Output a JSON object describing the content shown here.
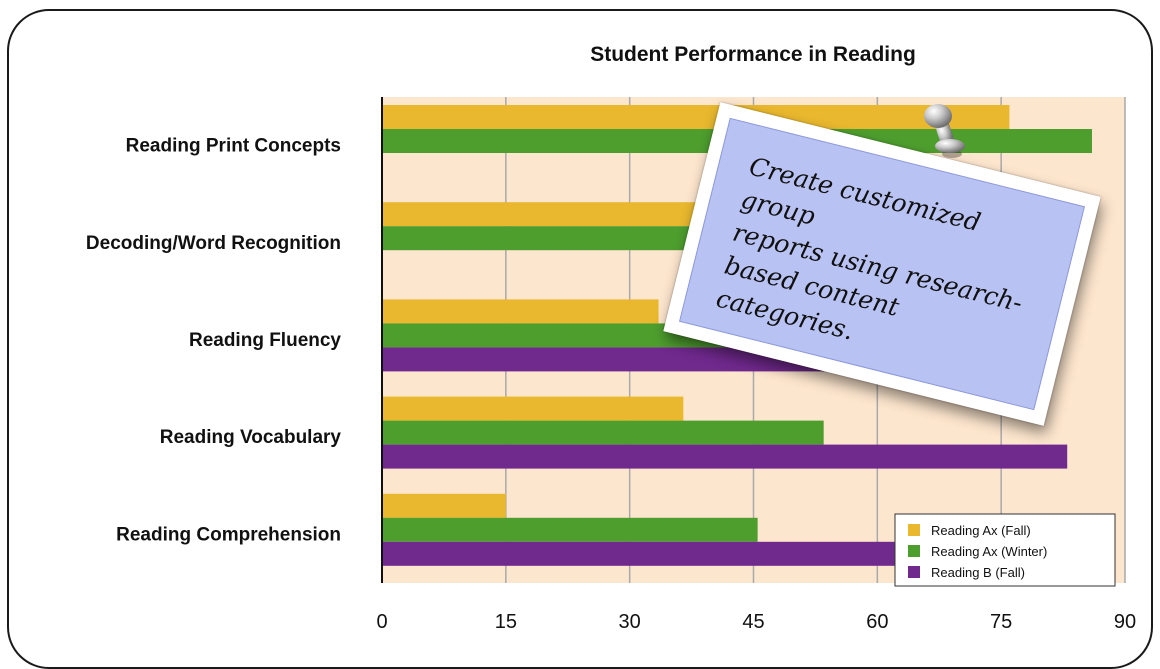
{
  "chart_data": {
    "type": "bar",
    "orientation": "horizontal",
    "title": "Student Performance in Reading",
    "categories": [
      "Reading Print Concepts",
      "Decoding/Word Recognition",
      "Reading Fluency",
      "Reading Vocabulary",
      "Reading Comprehension"
    ],
    "series": [
      {
        "name": "Reading Ax (Fall)",
        "color": "#e9b82e",
        "values": [
          76,
          76,
          33.5,
          36.5,
          15
        ]
      },
      {
        "name": "Reading Ax (Winter)",
        "color": "#4e9e2e",
        "values": [
          86,
          79,
          47.5,
          53.5,
          45.5
        ]
      },
      {
        "name": "Reading B (Fall)",
        "color": "#70298d",
        "values": [
          null,
          null,
          75,
          83,
          80
        ]
      }
    ],
    "xlim": [
      0,
      90
    ],
    "xticks": [
      "0",
      "15",
      "30",
      "45",
      "60",
      "75",
      "90"
    ],
    "grid": true,
    "plot_background": "#fde6ce",
    "legend_position": "bottom-right"
  },
  "note": {
    "lines": [
      "Create customized group",
      "reports using research-",
      "based content categories."
    ]
  }
}
